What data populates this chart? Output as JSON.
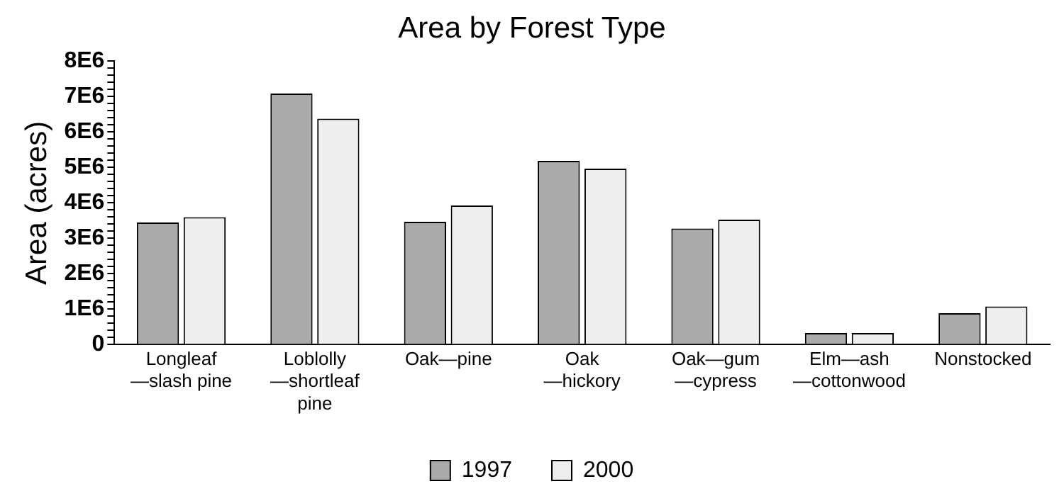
{
  "chart_data": {
    "type": "bar",
    "title": "Area by Forest Type",
    "ylabel": "Area (acres)",
    "categories": [
      "Longleaf—slash pine",
      "Loblolly—shortleaf pine",
      "Oak—pine",
      "Oak—hickory",
      "Oak—gum—cypress",
      "Elm—ash—cottonwood",
      "Nonstocked"
    ],
    "series": [
      {
        "name": "1997",
        "color": "#aaaaaa",
        "values": [
          3450000,
          7090000,
          3470000,
          5190000,
          3280000,
          330000,
          890000
        ]
      },
      {
        "name": "2000",
        "color": "#eeeeee",
        "values": [
          3600000,
          6380000,
          3930000,
          4970000,
          3530000,
          330000,
          1080000
        ]
      }
    ],
    "ylim": [
      0,
      8000000
    ],
    "yticks": [
      {
        "value": 0,
        "label": "0"
      },
      {
        "value": 200000,
        "label": null
      },
      {
        "value": 400000,
        "label": null
      },
      {
        "value": 600000,
        "label": null
      },
      {
        "value": 800000,
        "label": null
      },
      {
        "value": 1000000,
        "label": "1E6"
      },
      {
        "value": 1200000,
        "label": null
      },
      {
        "value": 1400000,
        "label": null
      },
      {
        "value": 1600000,
        "label": null
      },
      {
        "value": 1800000,
        "label": null
      },
      {
        "value": 2000000,
        "label": "2E6"
      },
      {
        "value": 2200000,
        "label": null
      },
      {
        "value": 2400000,
        "label": null
      },
      {
        "value": 2600000,
        "label": null
      },
      {
        "value": 2800000,
        "label": null
      },
      {
        "value": 3000000,
        "label": "3E6"
      },
      {
        "value": 3200000,
        "label": null
      },
      {
        "value": 3400000,
        "label": null
      },
      {
        "value": 3600000,
        "label": null
      },
      {
        "value": 3800000,
        "label": null
      },
      {
        "value": 4000000,
        "label": "4E6"
      },
      {
        "value": 4200000,
        "label": null
      },
      {
        "value": 4400000,
        "label": null
      },
      {
        "value": 4600000,
        "label": null
      },
      {
        "value": 4800000,
        "label": null
      },
      {
        "value": 5000000,
        "label": "5E6"
      },
      {
        "value": 5200000,
        "label": null
      },
      {
        "value": 5400000,
        "label": null
      },
      {
        "value": 5600000,
        "label": null
      },
      {
        "value": 5800000,
        "label": null
      },
      {
        "value": 6000000,
        "label": "6E6"
      },
      {
        "value": 6200000,
        "label": null
      },
      {
        "value": 6400000,
        "label": null
      },
      {
        "value": 6600000,
        "label": null
      },
      {
        "value": 6800000,
        "label": null
      },
      {
        "value": 7000000,
        "label": "7E6"
      },
      {
        "value": 7200000,
        "label": null
      },
      {
        "value": 7400000,
        "label": null
      },
      {
        "value": 7600000,
        "label": null
      },
      {
        "value": 7800000,
        "label": null
      },
      {
        "value": 8000000,
        "label": "8E6"
      }
    ],
    "grid": false,
    "legend": "bottom"
  }
}
